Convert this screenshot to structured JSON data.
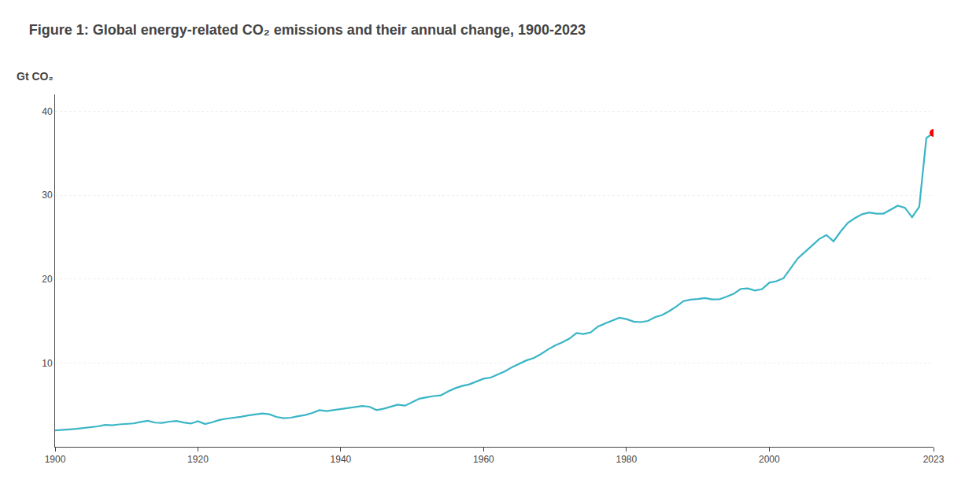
{
  "chart_data": {
    "type": "line",
    "title": "Figure 1: Global energy-related CO₂ emissions and their annual change, 1900-2023",
    "ylabel": "Gt CO₂",
    "x": [
      1900,
      1901,
      1902,
      1903,
      1904,
      1905,
      1906,
      1907,
      1908,
      1909,
      1910,
      1911,
      1912,
      1913,
      1914,
      1915,
      1916,
      1917,
      1918,
      1919,
      1920,
      1921,
      1922,
      1923,
      1924,
      1925,
      1926,
      1927,
      1928,
      1929,
      1930,
      1931,
      1932,
      1933,
      1934,
      1935,
      1936,
      1937,
      1938,
      1939,
      1940,
      1941,
      1942,
      1943,
      1944,
      1945,
      1946,
      1947,
      1948,
      1949,
      1950,
      1951,
      1952,
      1953,
      1954,
      1955,
      1956,
      1957,
      1958,
      1959,
      1960,
      1961,
      1962,
      1963,
      1964,
      1965,
      1966,
      1967,
      1968,
      1969,
      1970,
      1971,
      1972,
      1973,
      1974,
      1975,
      1976,
      1977,
      1978,
      1979,
      1980,
      1981,
      1982,
      1983,
      1984,
      1985,
      1986,
      1987,
      1988,
      1989,
      1990,
      1991,
      1992,
      1993,
      1994,
      1995,
      1996,
      1997,
      1998,
      1999,
      2000,
      2001,
      2002,
      2003,
      2004,
      2005,
      2006,
      2007,
      2008,
      2009,
      2010,
      2011,
      2012,
      2013,
      2014,
      2015,
      2016,
      2017,
      2018,
      2019,
      2020,
      2021,
      2022,
      2023
    ],
    "series": [
      {
        "type": "line",
        "color": "#3ab5c6",
        "values": [
          1.96,
          2.0,
          2.08,
          2.15,
          2.25,
          2.32,
          2.44,
          2.61,
          2.56,
          2.67,
          2.75,
          2.79,
          2.97,
          3.11,
          2.88,
          2.85,
          3.0,
          3.08,
          2.9,
          2.77,
          3.05,
          2.71,
          2.93,
          3.2,
          3.35,
          3.45,
          3.57,
          3.73,
          3.83,
          3.98,
          3.88,
          3.56,
          3.42,
          3.47,
          3.64,
          3.79,
          4.03,
          4.37,
          4.26,
          4.38,
          4.48,
          4.61,
          4.74,
          4.86,
          4.78,
          4.38,
          4.53,
          4.79,
          5.02,
          4.91,
          5.31,
          5.73,
          5.89,
          6.05,
          6.12,
          6.59,
          6.97,
          7.25,
          7.44,
          7.75,
          8.12,
          8.25,
          8.62,
          9.0,
          9.5,
          9.88,
          10.3,
          10.57,
          11.04,
          11.59,
          12.06,
          12.44,
          12.89,
          13.55,
          13.45,
          13.64,
          14.32,
          14.69,
          15.0,
          15.38,
          15.22,
          14.92,
          14.86,
          15.0,
          15.45,
          15.71,
          16.17,
          16.72,
          17.37,
          17.54,
          17.62,
          17.73,
          17.56,
          17.58,
          17.89,
          18.23,
          18.82,
          18.87,
          18.62,
          18.8,
          19.56,
          19.73,
          20.09,
          21.24,
          22.46,
          23.22,
          23.99,
          24.76,
          25.24,
          24.49,
          25.66,
          26.69,
          27.26,
          27.72,
          27.92,
          27.79,
          27.79,
          28.27,
          28.73,
          28.49,
          27.37,
          28.6,
          36.8,
          37.4
        ]
      },
      {
        "type": "scatter",
        "color": "#ff0000",
        "x": [
          2023
        ],
        "values": [
          37.4
        ]
      }
    ],
    "xlim": [
      1900,
      2023
    ],
    "xticks": [
      1900,
      1920,
      1940,
      1960,
      1980,
      2000,
      2023
    ],
    "ylim": [
      0,
      42
    ],
    "yticks": [
      10,
      20,
      30,
      40
    ],
    "grid": true
  }
}
